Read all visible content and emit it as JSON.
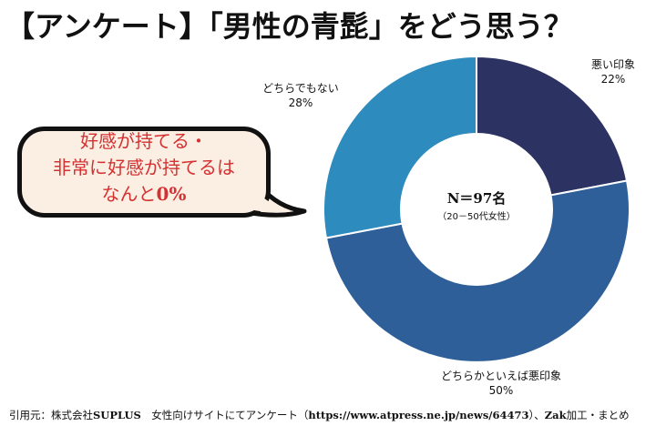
{
  "page": {
    "title": "【アンケート】「男性の青髭」をどう思う？"
  },
  "callout": {
    "line1": "好感が持てる・",
    "line2": "非常に好感が持てるは",
    "line3_prefix": "なんと",
    "line3_value": "0%"
  },
  "center": {
    "n_label": "N＝97名",
    "sub_label": "（20－50代女性）"
  },
  "chart_data": {
    "type": "pie",
    "donut": true,
    "categories": [
      "悪い印象",
      "どちらかといえば悪印象",
      "どちらでもない"
    ],
    "values": [
      22,
      50,
      28
    ],
    "value_labels": [
      "22%",
      "50%",
      "28%"
    ],
    "colors": [
      "#2c3262",
      "#2e5f98",
      "#2e8bbd"
    ],
    "start_angle_deg": 0,
    "direction": "clockwise"
  },
  "footer": {
    "prefix": "引用元：株式会社",
    "company": "SUPLUS",
    "middle": "　女性向けサイトにてアンケート（",
    "url": "https://www.atpress.ne.jp/news/64473",
    "suffix_a": "）、",
    "zak": "Zak",
    "suffix_b": "加工・まとめ"
  }
}
